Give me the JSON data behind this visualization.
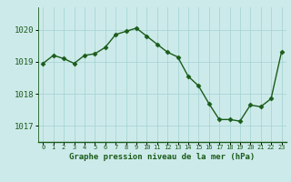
{
  "x": [
    0,
    1,
    2,
    3,
    4,
    5,
    6,
    7,
    8,
    9,
    10,
    11,
    12,
    13,
    14,
    15,
    16,
    17,
    18,
    19,
    20,
    21,
    22,
    23
  ],
  "y": [
    1018.95,
    1019.2,
    1019.1,
    1018.95,
    1019.2,
    1019.25,
    1019.45,
    1019.85,
    1019.95,
    1020.05,
    1019.8,
    1019.55,
    1019.3,
    1019.15,
    1018.55,
    1018.25,
    1017.7,
    1017.2,
    1017.2,
    1017.15,
    1017.65,
    1017.6,
    1017.85,
    1019.3
  ],
  "line_color": "#1a5c1a",
  "marker": "D",
  "marker_size": 2.5,
  "background_color": "#cdeaea",
  "grid_color": "#a8d5d5",
  "xlabel": "Graphe pression niveau de la mer (hPa)",
  "xlabel_color": "#1a5c1a",
  "tick_color": "#1a5c1a",
  "ylim": [
    1016.5,
    1020.7
  ],
  "yticks": [
    1017,
    1018,
    1019,
    1020
  ],
  "xlim": [
    -0.5,
    23.5
  ],
  "xticks": [
    0,
    1,
    2,
    3,
    4,
    5,
    6,
    7,
    8,
    9,
    10,
    11,
    12,
    13,
    14,
    15,
    16,
    17,
    18,
    19,
    20,
    21,
    22,
    23
  ]
}
